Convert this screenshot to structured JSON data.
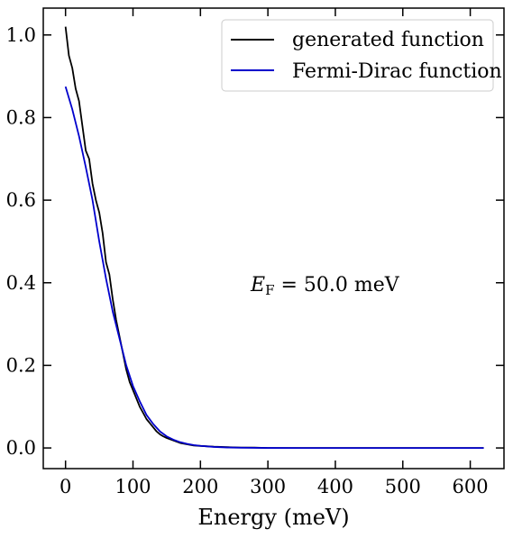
{
  "chart_data": {
    "type": "line",
    "title": "",
    "xlabel": "Energy (meV)",
    "ylabel": "",
    "xlim": [
      -33,
      650
    ],
    "ylim": [
      -0.05,
      1.065
    ],
    "xticks": [
      0,
      100,
      200,
      300,
      400,
      500,
      600
    ],
    "yticks": [
      0.0,
      0.2,
      0.4,
      0.6,
      0.8,
      1.0
    ],
    "xtick_labels": [
      "0",
      "100",
      "200",
      "300",
      "400",
      "500",
      "600"
    ],
    "ytick_labels": [
      "0.0",
      "0.2",
      "0.4",
      "0.6",
      "0.8",
      "1.0"
    ],
    "grid": false,
    "legend_position": "top-right",
    "annotation": {
      "symbol": "E",
      "subscript": "F",
      "text": " = 50.0 meV",
      "x": 280,
      "y": 0.39
    },
    "series": [
      {
        "name": "generated function",
        "color": "#000000",
        "x": [
          0,
          5,
          10,
          15,
          20,
          25,
          30,
          35,
          40,
          45,
          50,
          55,
          60,
          65,
          70,
          75,
          80,
          85,
          90,
          95,
          100,
          105,
          110,
          115,
          120,
          125,
          130,
          135,
          140,
          145,
          150,
          160,
          170,
          180,
          190,
          200,
          220,
          240,
          260,
          280,
          300,
          350,
          400,
          450,
          500,
          550,
          620
        ],
        "y": [
          1.02,
          0.95,
          0.92,
          0.87,
          0.84,
          0.78,
          0.72,
          0.7,
          0.64,
          0.6,
          0.57,
          0.52,
          0.45,
          0.42,
          0.36,
          0.31,
          0.27,
          0.23,
          0.19,
          0.16,
          0.14,
          0.12,
          0.1,
          0.085,
          0.07,
          0.06,
          0.05,
          0.04,
          0.033,
          0.028,
          0.024,
          0.018,
          0.012,
          0.009,
          0.006,
          0.005,
          0.003,
          0.002,
          0.001,
          0.001,
          0.0,
          0.0,
          0.0,
          0.0,
          0.0,
          0.0,
          0.0
        ]
      },
      {
        "name": "Fermi-Dirac function",
        "color": "#0000cc",
        "x": [
          0,
          10,
          20,
          30,
          40,
          50,
          60,
          70,
          80,
          90,
          100,
          110,
          120,
          130,
          140,
          150,
          160,
          170,
          180,
          190,
          200,
          220,
          240,
          260,
          280,
          300,
          350,
          400,
          450,
          500,
          550,
          620
        ],
        "y": [
          0.875,
          0.82,
          0.755,
          0.68,
          0.6,
          0.5,
          0.41,
          0.33,
          0.265,
          0.2,
          0.15,
          0.113,
          0.08,
          0.058,
          0.04,
          0.028,
          0.02,
          0.014,
          0.01,
          0.007,
          0.005,
          0.0025,
          0.0012,
          0.0006,
          0.0003,
          0.0001,
          0.0,
          0.0,
          0.0,
          0.0,
          0.0,
          0.0
        ]
      }
    ]
  }
}
